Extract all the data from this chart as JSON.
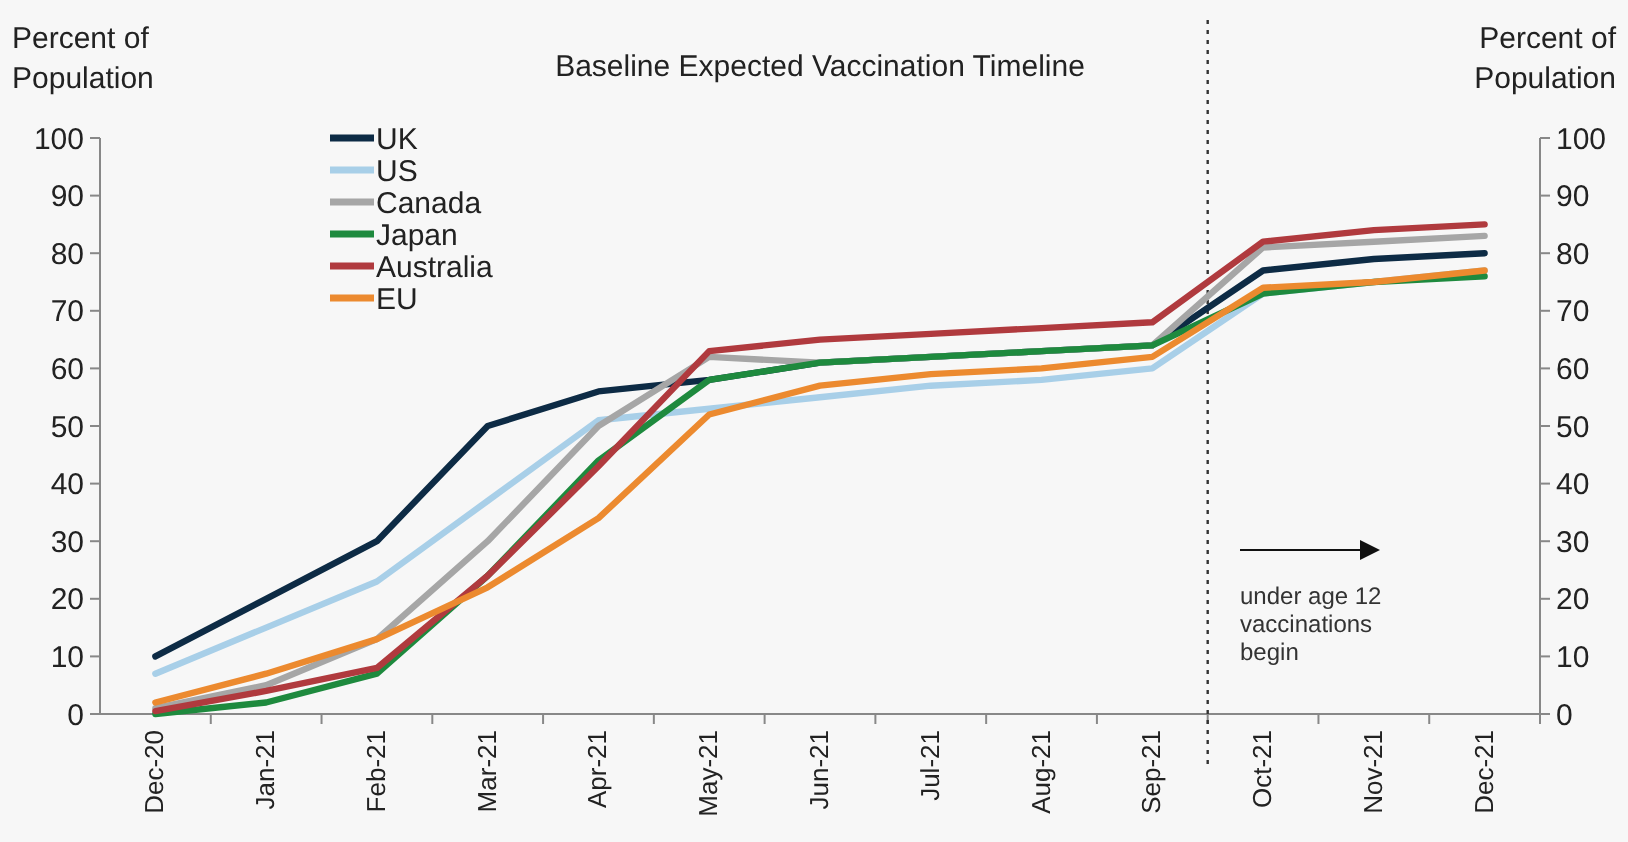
{
  "chart_data": {
    "type": "line",
    "title": "Baseline Expected Vaccination Timeline",
    "ylabel": "Percent of Population",
    "y2label": "Percent of Population",
    "categories": [
      "Dec-20",
      "Jan-21",
      "Feb-21",
      "Mar-21",
      "Apr-21",
      "May-21",
      "Jun-21",
      "Jul-21",
      "Aug-21",
      "Sep-21",
      "Oct-21",
      "Nov-21",
      "Dec-21"
    ],
    "series": [
      {
        "name": "UK",
        "color": "#0d2b45",
        "values": [
          10,
          20,
          30,
          50,
          56,
          58,
          61,
          62,
          63,
          64,
          77,
          79,
          80
        ]
      },
      {
        "name": "US",
        "color": "#a8cfe8",
        "values": [
          7,
          15,
          23,
          37,
          51,
          53,
          55,
          57,
          58,
          60,
          73,
          75,
          77
        ]
      },
      {
        "name": "Canada",
        "color": "#a6a6a6",
        "values": [
          1,
          5,
          13,
          30,
          50,
          62,
          61,
          62,
          63,
          64,
          81,
          82,
          83
        ]
      },
      {
        "name": "Japan",
        "color": "#1e8a3e",
        "values": [
          0,
          2,
          7,
          24,
          44,
          58,
          61,
          62,
          63,
          64,
          73,
          75,
          76
        ]
      },
      {
        "name": "Australia",
        "color": "#b03a3e",
        "values": [
          0.5,
          4,
          8,
          24,
          43,
          63,
          65,
          66,
          67,
          68,
          82,
          84,
          85
        ]
      },
      {
        "name": "EU",
        "color": "#ec8a2f",
        "values": [
          2,
          7,
          13,
          22,
          34,
          52,
          57,
          59,
          60,
          62,
          74,
          75,
          77
        ]
      }
    ],
    "ylim": [
      0,
      100
    ],
    "yticks": [
      0,
      10,
      20,
      30,
      40,
      50,
      60,
      70,
      80,
      90,
      100
    ],
    "y2lim": [
      0,
      100
    ],
    "y2ticks": [
      0,
      10,
      20,
      30,
      40,
      50,
      60,
      70,
      80,
      90,
      100
    ],
    "annotations": [
      "under age 12 vaccinations begin"
    ],
    "legend": "top left",
    "grid": false,
    "marker": "none",
    "line_style": "solid"
  }
}
